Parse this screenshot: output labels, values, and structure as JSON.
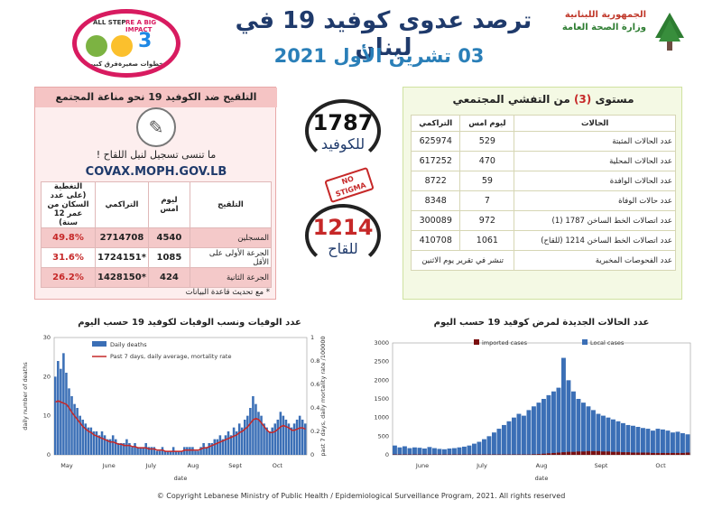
{
  "header": {
    "title": "ترصد عدوى كوفيد 19 في لبنان",
    "date": "03 تشرين الأول 2021",
    "moph_line1": "الجمهورية اللبنانية",
    "moph_line2": "وزارة الصحة العامة",
    "campaign": {
      "text1": "ALL STEP",
      "text2": "RE A BIG IMPACT",
      "text3": "3",
      "text4": "خطوات صغيرة",
      "text5": "فرق كبير"
    }
  },
  "community": {
    "title_pre": "مستوى",
    "title_level": "(3)",
    "title_post": "من التفشي المجتمعي",
    "col_cases": "الحالات",
    "col_yesterday": "ليوم امس",
    "col_cumulative": "التراكمي",
    "rows": [
      {
        "label": "عدد الحالات المثبتة",
        "yesterday": "529",
        "cumulative": "625974"
      },
      {
        "label": "عدد الحالات المحلية",
        "yesterday": "470",
        "cumulative": "617252"
      },
      {
        "label": "عدد الحالات الوافدة",
        "yesterday": "59",
        "cumulative": "8722"
      },
      {
        "label": "عدد حالات الوفاة",
        "yesterday": "7",
        "cumulative": "8348"
      },
      {
        "label": "عدد اتصالات الخط الساخن 1787 (1)",
        "yesterday": "972",
        "cumulative": "300089"
      },
      {
        "label": "عدد اتصالات الخط الساخن 1214 (للقاح)",
        "yesterday": "1061",
        "cumulative": "410708"
      }
    ],
    "tests_label": "عدد الفحوصات المخبرية",
    "tests_note": "تنشر في تقرير يوم الاثنين"
  },
  "hotlines": {
    "covid_number": "1787",
    "covid_label": "للكوفيد",
    "vaccine_number": "1214",
    "vaccine_label": "للقاح",
    "stamp": "NO STIGMA"
  },
  "vaccination": {
    "title": "التلقيح ضد الكوفيد 19 نحو مناعة المجتمع",
    "register_text": "ما تنسى تسجيل لنيل اللقاح !",
    "url": "COVAX.MOPH.GOV.LB",
    "col_vaccination": "التلقيح",
    "col_yesterday": "ليوم امس",
    "col_cumulative": "التراكمي",
    "col_coverage": "التغطية (على عدد السكان من عمر 12 سنة)",
    "rows": [
      {
        "label": "المسجلين",
        "yesterday": "4540",
        "cumulative": "2714708",
        "coverage": "49.8%"
      },
      {
        "label": "الجرعة الأولى على الأقل",
        "yesterday": "1085",
        "cumulative": "1724151*",
        "coverage": "31.6%"
      },
      {
        "label": "الجرعة الثانية",
        "yesterday": "424",
        "cumulative": "1428150*",
        "coverage": "26.2%"
      }
    ],
    "note": "* مع تحديث قاعدة البيانات"
  },
  "deaths_chart_title": "عدد الوفيات ونسب الوفيات لكوفيد 19 حسب اليوم",
  "cases_chart_title": "عدد الحالات الجديدة لمرض كوفيد 19 حسب اليوم",
  "chart_data": [
    {
      "type": "bar",
      "title": "عدد الوفيات ونسب الوفيات لكوفيد 19 حسب اليوم",
      "xlabel": "date",
      "ylabel": "daily number of deaths",
      "y2label": "past 7 days, daily mortality rate /100000",
      "ylim": [
        0,
        30
      ],
      "y2lim": [
        0,
        1
      ],
      "yticks": [
        "0",
        "10",
        "20",
        "30"
      ],
      "y2ticks": [
        "0",
        "0.2",
        "0.4",
        "0.6",
        "0.8",
        "1"
      ],
      "months": [
        "May",
        "June",
        "July",
        "Aug",
        "Sept",
        "Oct"
      ],
      "legend_position": "top-left",
      "series": [
        {
          "name": "Daily deaths",
          "color": "#3b6fb6",
          "kind": "bar",
          "values": [
            20,
            24,
            22,
            26,
            21,
            17,
            15,
            13,
            12,
            10,
            9,
            8,
            7,
            7,
            6,
            6,
            5,
            6,
            5,
            4,
            4,
            5,
            4,
            3,
            3,
            3,
            4,
            3,
            2,
            3,
            2,
            2,
            2,
            3,
            2,
            2,
            2,
            1,
            1,
            2,
            1,
            1,
            1,
            2,
            1,
            1,
            1,
            2,
            2,
            2,
            2,
            1,
            1,
            2,
            3,
            2,
            3,
            3,
            4,
            4,
            5,
            4,
            5,
            6,
            5,
            7,
            6,
            8,
            7,
            9,
            10,
            12,
            15,
            13,
            11,
            10,
            8,
            7,
            6,
            7,
            8,
            9,
            11,
            10,
            9,
            8,
            7,
            8,
            9,
            10,
            9,
            8
          ]
        },
        {
          "name": "Past 7 days, daily average, mortality rate",
          "color": "#c62828",
          "kind": "line",
          "values": [
            0.45,
            0.46,
            0.45,
            0.44,
            0.43,
            0.4,
            0.36,
            0.33,
            0.3,
            0.27,
            0.24,
            0.22,
            0.2,
            0.19,
            0.17,
            0.16,
            0.15,
            0.14,
            0.13,
            0.12,
            0.11,
            0.11,
            0.1,
            0.09,
            0.09,
            0.08,
            0.08,
            0.08,
            0.07,
            0.07,
            0.06,
            0.06,
            0.06,
            0.06,
            0.05,
            0.05,
            0.05,
            0.04,
            0.04,
            0.04,
            0.03,
            0.03,
            0.03,
            0.03,
            0.03,
            0.03,
            0.03,
            0.04,
            0.04,
            0.04,
            0.04,
            0.04,
            0.04,
            0.05,
            0.06,
            0.06,
            0.07,
            0.08,
            0.09,
            0.1,
            0.11,
            0.12,
            0.13,
            0.14,
            0.15,
            0.16,
            0.17,
            0.19,
            0.2,
            0.22,
            0.24,
            0.27,
            0.3,
            0.31,
            0.3,
            0.27,
            0.24,
            0.21,
            0.19,
            0.19,
            0.2,
            0.22,
            0.24,
            0.25,
            0.24,
            0.23,
            0.21,
            0.21,
            0.22,
            0.23,
            0.23,
            0.22
          ]
        }
      ]
    },
    {
      "type": "bar",
      "title": "عدد الحالات الجديدة لمرض كوفيد 19 حسب اليوم",
      "xlabel": "date",
      "ylim": [
        0,
        3000
      ],
      "yticks": [
        "0",
        "500",
        "1000",
        "1500",
        "2000",
        "2500",
        "3000"
      ],
      "months": [
        "June",
        "July",
        "Aug",
        "Sept",
        "Oct"
      ],
      "legend_position": "top-left",
      "series": [
        {
          "name": "imported cases",
          "color": "#7a1010",
          "values": [
            10,
            10,
            10,
            10,
            10,
            10,
            10,
            10,
            10,
            10,
            10,
            10,
            10,
            10,
            10,
            10,
            10,
            10,
            10,
            10,
            10,
            10,
            10,
            10,
            10,
            10,
            10,
            10,
            15,
            20,
            30,
            40,
            50,
            60,
            70,
            80,
            80,
            90,
            90,
            100,
            100,
            100,
            90,
            90,
            80,
            80,
            70,
            70,
            60,
            60,
            60,
            60,
            50,
            50,
            50,
            50,
            50,
            50,
            50,
            60
          ]
        },
        {
          "name": "Local cases",
          "color": "#3b6fb6",
          "values": [
            250,
            200,
            230,
            180,
            200,
            190,
            170,
            210,
            180,
            160,
            150,
            170,
            180,
            200,
            220,
            250,
            300,
            350,
            420,
            500,
            600,
            700,
            800,
            900,
            1000,
            1100,
            1050,
            1200,
            1300,
            1400,
            1500,
            1600,
            1700,
            1800,
            2600,
            2000,
            1700,
            1500,
            1400,
            1300,
            1200,
            1100,
            1050,
            1000,
            950,
            900,
            850,
            800,
            780,
            750,
            720,
            700,
            650,
            700,
            680,
            650,
            600,
            620,
            580,
            550
          ]
        }
      ]
    }
  ],
  "footer": "© Copyright Lebanese Ministry of Public Health / Epidemiological Surveillance Program, 2021. All rights reserved"
}
